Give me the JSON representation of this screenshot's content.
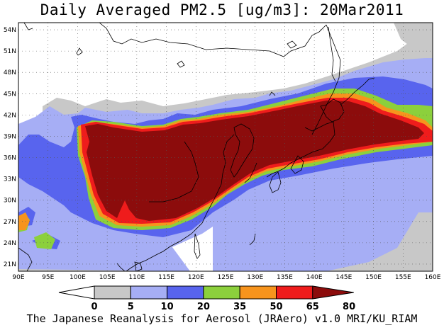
{
  "title": "Daily Averaged PM2.5 [ug/m3]: 20Mar2011",
  "credit": "The Japanese Reanalysis for Aerosol (JRAero) v1.0 MRI/KU_RIAM",
  "map": {
    "lon_range": [
      90,
      160
    ],
    "lat_range": [
      20,
      55
    ],
    "lon_ticks": [
      "90E",
      "95E",
      "100E",
      "105E",
      "110E",
      "115E",
      "120E",
      "125E",
      "130E",
      "135E",
      "140E",
      "145E",
      "150E",
      "155E",
      "160E"
    ],
    "lat_ticks": [
      "54N",
      "51N",
      "48N",
      "45N",
      "42N",
      "39N",
      "36N",
      "33N",
      "30N",
      "27N",
      "24N",
      "21N"
    ],
    "gridlines": "dotted"
  },
  "colorbar": {
    "labels": [
      "0",
      "5",
      "10",
      "20",
      "35",
      "50",
      "65",
      "80"
    ],
    "colors": [
      "#ffffff",
      "#c8c8c8",
      "#a6aef5",
      "#5864ee",
      "#8cd03c",
      "#f7941d",
      "#ef1c1c",
      "#8c0c0c"
    ]
  },
  "contour_colors": {
    "gray": "#c8c8c8",
    "light_blue": "#a6aef5",
    "blue": "#5864ee",
    "green": "#8cd03c",
    "orange": "#f7941d",
    "red": "#ef1c1c",
    "dark_red": "#8c0c0c"
  }
}
